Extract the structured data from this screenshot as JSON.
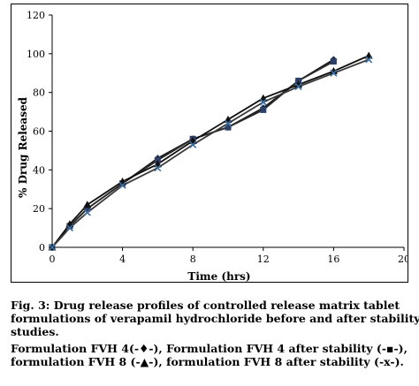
{
  "chart_data": {
    "type": "line",
    "ylabel": "% Drug Released",
    "xlabel": "Time (hrs)",
    "xlim": [
      0,
      20
    ],
    "ylim": [
      0,
      120
    ],
    "x_ticks": [
      0,
      4,
      8,
      12,
      16,
      20
    ],
    "y_ticks": [
      0,
      20,
      40,
      60,
      80,
      100,
      120
    ],
    "grid": false,
    "legend": "none",
    "series": [
      {
        "marker": "diamond",
        "x": [
          0,
          1,
          2,
          4,
          6,
          8,
          10,
          12,
          14,
          16
        ],
        "y": [
          0,
          11,
          20,
          33,
          46,
          56,
          62,
          72,
          86,
          97
        ]
      },
      {
        "marker": "square",
        "x": [
          0,
          1,
          2,
          4,
          6,
          8,
          10,
          12,
          14,
          16
        ],
        "y": [
          0,
          11,
          20,
          33,
          45,
          56,
          62,
          71,
          86,
          96
        ]
      },
      {
        "marker": "triangle",
        "x": [
          0,
          1,
          2,
          4,
          6,
          8,
          10,
          12,
          14,
          16,
          18
        ],
        "y": [
          0,
          12,
          22,
          34,
          43,
          55,
          66,
          77,
          84,
          91,
          99
        ]
      },
      {
        "marker": "x",
        "x": [
          0,
          1,
          2,
          4,
          6,
          8,
          10,
          12,
          14,
          16,
          18
        ],
        "y": [
          0,
          10,
          18,
          32,
          41,
          53,
          64,
          75,
          83,
          90,
          97
        ]
      }
    ]
  },
  "caption": {
    "line1": "Fig. 3: Drug release profiles of controlled release matrix tablet",
    "line2": "formulations of verapamil hydrochloride before and after stability",
    "line3": "studies.",
    "legend_line1": "Formulation FVH 4(-♦-), Formulation FVH 4 after stability (-▪-),",
    "legend_line2": "formulation FVH 8 (-▲-), formulation FVH 8 after stability (-x-)."
  }
}
